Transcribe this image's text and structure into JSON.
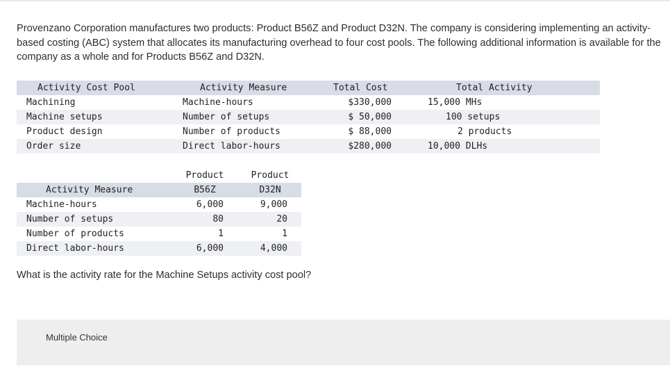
{
  "intro_text": "Provenzano Corporation manufactures two products: Product B56Z and Product D32N. The company is considering implementing an activity-based costing (ABC) system that allocates its manufacturing overhead to four cost pools. The following additional information is available for the company as a whole and for Products B56Z and D32N.",
  "table1": {
    "headers": [
      "Activity Cost Pool",
      "Activity Measure",
      "Total Cost",
      "Total Activity"
    ],
    "rows": [
      [
        "Machining",
        "Machine-hours",
        "$330,000",
        "15,000 MHs"
      ],
      [
        "Machine setups",
        "Number of setups",
        "$ 50,000",
        "100 setups"
      ],
      [
        "Product design",
        "Number of products",
        "$ 88,000",
        "2 products"
      ],
      [
        "Order size",
        "Direct labor-hours",
        "$280,000",
        "10,000 DLHs"
      ]
    ]
  },
  "table2": {
    "header_line1": [
      "",
      "Product",
      "Product"
    ],
    "header_line2": [
      "Activity Measure",
      "B56Z",
      "D32N"
    ],
    "rows": [
      [
        "Machine-hours",
        "6,000",
        "9,000"
      ],
      [
        "Number of setups",
        "80",
        "20"
      ],
      [
        "Number of products",
        "1",
        "1"
      ],
      [
        "Direct labor-hours",
        "6,000",
        "4,000"
      ]
    ]
  },
  "question": "What is the activity rate for the Machine Setups activity cost pool?",
  "multiple_choice_label": "Multiple Choice"
}
